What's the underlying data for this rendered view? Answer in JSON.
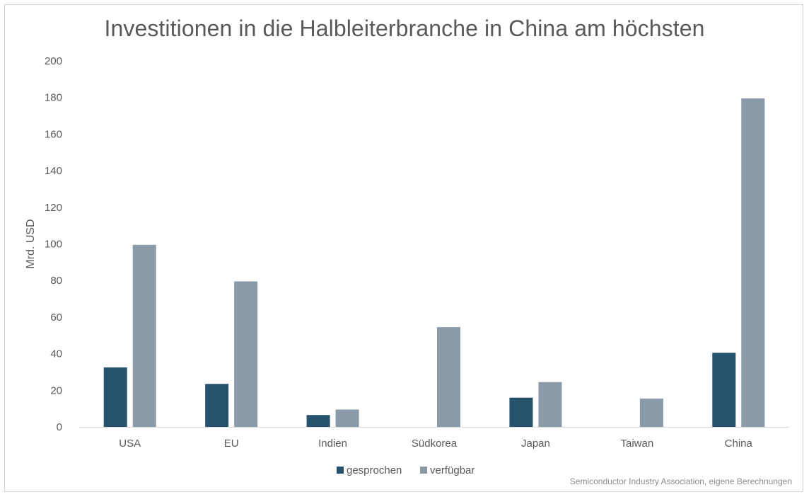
{
  "chart_data": {
    "type": "bar",
    "title": "Investitionen in die Halbleiterbranche in China am höchsten",
    "xlabel": "",
    "ylabel": "Mrd. USD",
    "ylim": [
      0,
      200
    ],
    "yticks": [
      0,
      20,
      40,
      60,
      80,
      100,
      120,
      140,
      160,
      180,
      200
    ],
    "grid": false,
    "legend_position": "bottom",
    "categories": [
      "USA",
      "EU",
      "Indien",
      "Südkorea",
      "Japan",
      "Taiwan",
      "China"
    ],
    "series": [
      {
        "name": "gesprochen",
        "color": "#27526e",
        "values": [
          32.5,
          23.5,
          6.5,
          0,
          16,
          0,
          40.5
        ]
      },
      {
        "name": "verfügbar",
        "color": "#8a9aa9",
        "values": [
          99.5,
          79.5,
          9.5,
          54.5,
          24.5,
          15.5,
          179.5
        ]
      }
    ],
    "source": "Semiconductor Industry Association, eigene Berechnungen"
  }
}
